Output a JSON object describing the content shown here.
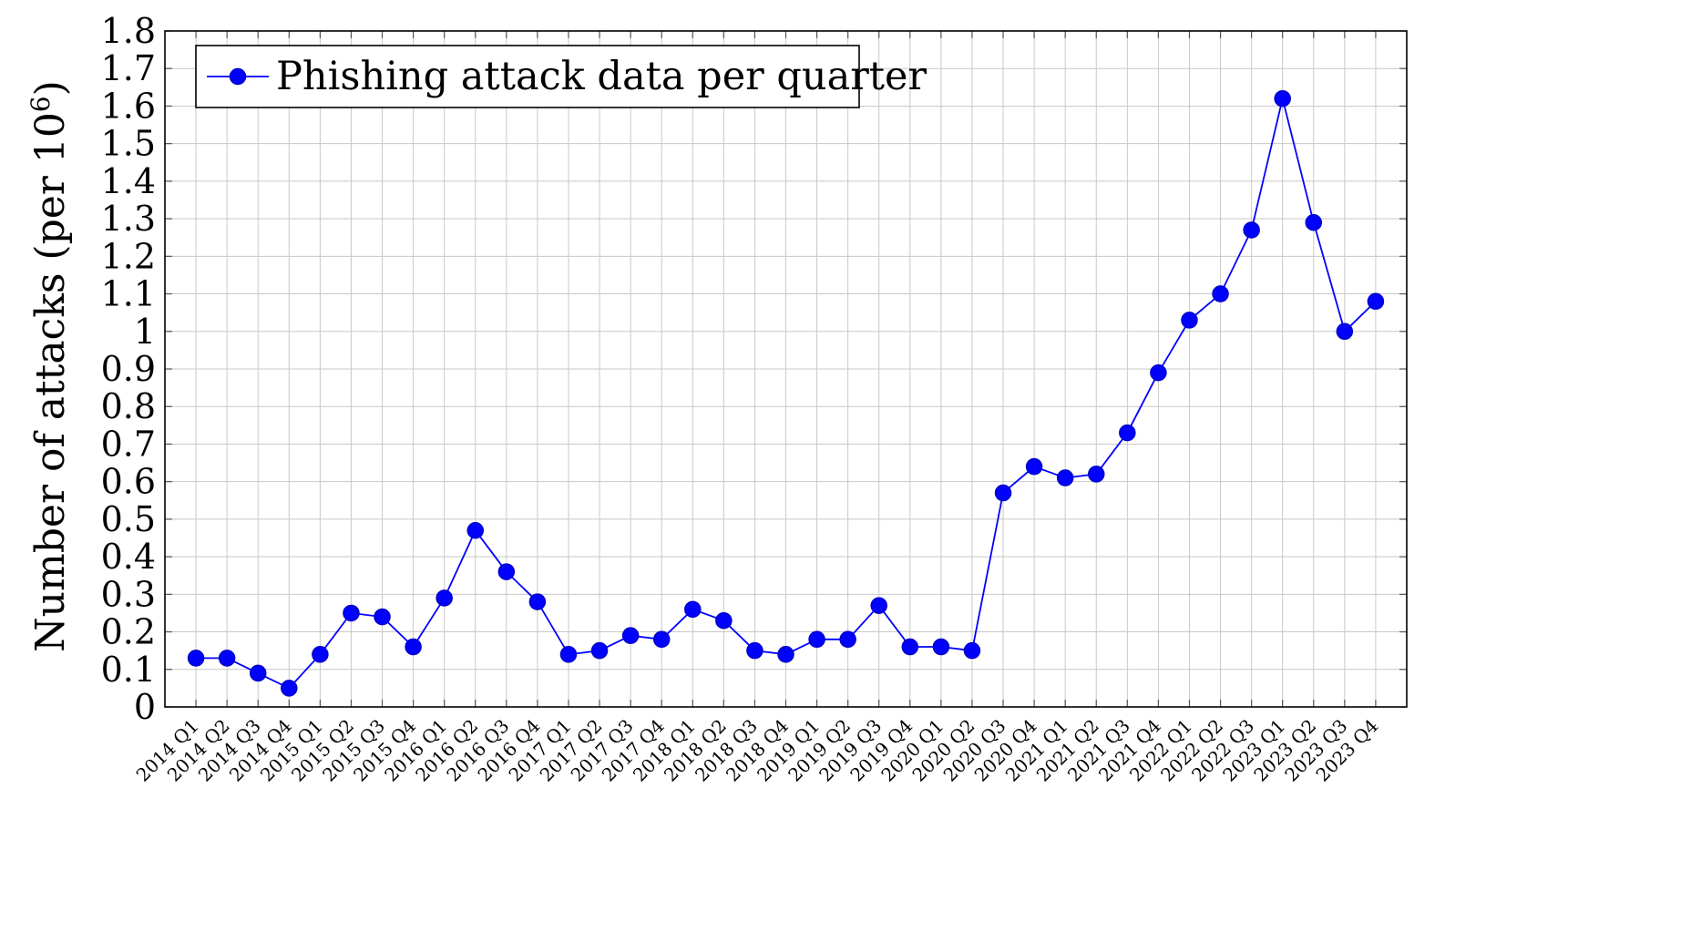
{
  "chart_data": {
    "type": "line",
    "title": "",
    "xlabel": "",
    "ylabel": "Number of attacks (per 10",
    "ylabel_superscript": "6",
    "ylabel_suffix": ")",
    "ylim": [
      0,
      1.8
    ],
    "yticks": [
      "0",
      "0.1",
      "0.2",
      "0.3",
      "0.4",
      "0.5",
      "0.6",
      "0.7",
      "0.8",
      "0.9",
      "1",
      "1.1",
      "1.2",
      "1.3",
      "1.4",
      "1.5",
      "1.6",
      "1.7",
      "1.8"
    ],
    "grid": true,
    "legend_position": "top-left",
    "categories": [
      "2014 Q1",
      "2014 Q2",
      "2014 Q3",
      "2014 Q4",
      "2015 Q1",
      "2015 Q2",
      "2015 Q3",
      "2015 Q4",
      "2016 Q1",
      "2016 Q2",
      "2016 Q3",
      "2016 Q4",
      "2017 Q1",
      "2017 Q2",
      "2017 Q3",
      "2017 Q4",
      "2018 Q1",
      "2018 Q2",
      "2018 Q3",
      "2018 Q4",
      "2019 Q1",
      "2019 Q2",
      "2019 Q3",
      "2019 Q4",
      "2020 Q1",
      "2020 Q2",
      "2020 Q3",
      "2020 Q4",
      "2021 Q1",
      "2021 Q2",
      "2021 Q3",
      "2021 Q4",
      "2022 Q1",
      "2022 Q2",
      "2022 Q3",
      "2023 Q1",
      "2023 Q2",
      "2023 Q3",
      "2023 Q4"
    ],
    "series": [
      {
        "name": "Phishing attack data per quarter",
        "color": "#0000ff",
        "marker": "circle",
        "values": [
          0.13,
          0.13,
          0.09,
          0.05,
          0.14,
          0.25,
          0.24,
          0.16,
          0.29,
          0.47,
          0.36,
          0.28,
          0.14,
          0.15,
          0.19,
          0.18,
          0.26,
          0.23,
          0.15,
          0.14,
          0.18,
          0.18,
          0.27,
          0.16,
          0.16,
          0.15,
          0.57,
          0.64,
          0.61,
          0.62,
          0.73,
          0.89,
          1.03,
          1.1,
          1.27,
          1.62,
          1.29,
          1.0,
          1.08
        ]
      }
    ]
  }
}
